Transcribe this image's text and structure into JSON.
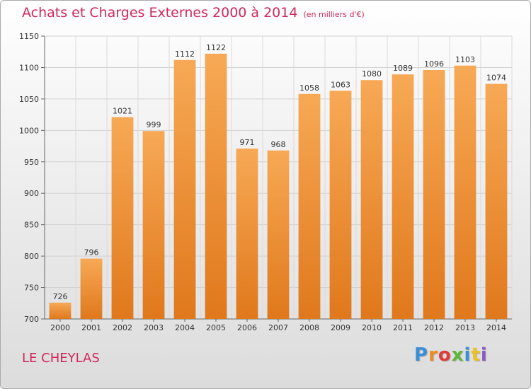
{
  "header": {
    "title": "Achats et Charges Externes 2000 à 2014",
    "unit": "(en milliers d'€)"
  },
  "footer": {
    "place": "LE CHEYLAS",
    "logo_letters": [
      "P",
      "r",
      "o",
      "x",
      "i",
      "t",
      "i"
    ],
    "logo_colors": [
      "#3a8fd8",
      "#f08a1c",
      "#e23a3a",
      "#5cb83a",
      "#3a8fd8",
      "#f0c020",
      "#8a5ac8"
    ]
  },
  "chart_data": {
    "type": "bar",
    "title": "Achats et Charges Externes 2000 à 2014",
    "unit": "(en milliers d'€)",
    "categories": [
      "2000",
      "2001",
      "2002",
      "2003",
      "2004",
      "2005",
      "2006",
      "2007",
      "2008",
      "2009",
      "2010",
      "2011",
      "2012",
      "2013",
      "2014"
    ],
    "values": [
      726,
      796,
      1021,
      999,
      1112,
      1122,
      971,
      968,
      1058,
      1063,
      1080,
      1089,
      1096,
      1103,
      1074
    ],
    "ylim": [
      700,
      1150
    ],
    "yticks": [
      700,
      750,
      800,
      850,
      900,
      950,
      1000,
      1050,
      1100,
      1150
    ],
    "bar_color_top": "#f7a955",
    "bar_color_bottom": "#e0781c",
    "grid": true
  }
}
